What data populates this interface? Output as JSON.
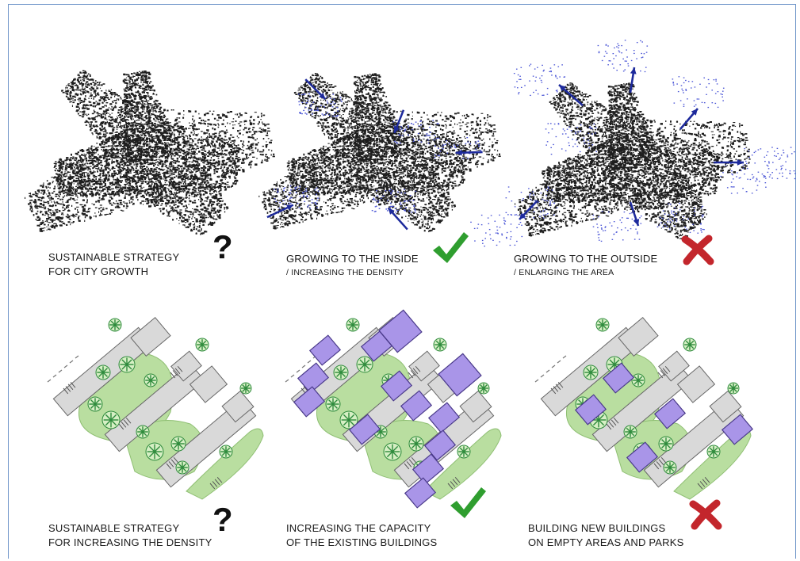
{
  "colors": {
    "urban": "#1e1e1e",
    "growth": "#4a55d6",
    "arrow": "#1d2a9c",
    "building": "#d9d9d9",
    "park": "#b9dea0",
    "tree": "#2e8b3c",
    "new_building": "#a995e8",
    "check": "#2f9e2f",
    "cross": "#c3262c"
  },
  "panels": {
    "top": [
      {
        "line1": "SUSTAINABLE STRATEGY",
        "line2": "FOR CITY GROWTH",
        "mark": "?",
        "mark_icon": "question-mark-icon"
      },
      {
        "line1": "GROWING TO THE INSIDE",
        "line2": "/ INCREASING THE DENSITY",
        "mark_icon": "checkmark-icon"
      },
      {
        "line1": "GROWING TO THE OUTSIDE",
        "line2": "/ ENLARGING THE AREA",
        "mark_icon": "cross-icon"
      }
    ],
    "bottom": [
      {
        "line1": "SUSTAINABLE STRATEGY",
        "line2": "FOR INCREASING THE DENSITY",
        "mark": "?",
        "mark_icon": "question-mark-icon"
      },
      {
        "line1": "INCREASING THE CAPACITY",
        "line2": "OF THE EXISTING BUILDINGS",
        "mark_icon": "checkmark-icon"
      },
      {
        "line1": "BUILDING NEW BUILDINGS",
        "line2": "ON EMPTY AREAS AND PARKS",
        "mark_icon": "cross-icon"
      }
    ]
  }
}
